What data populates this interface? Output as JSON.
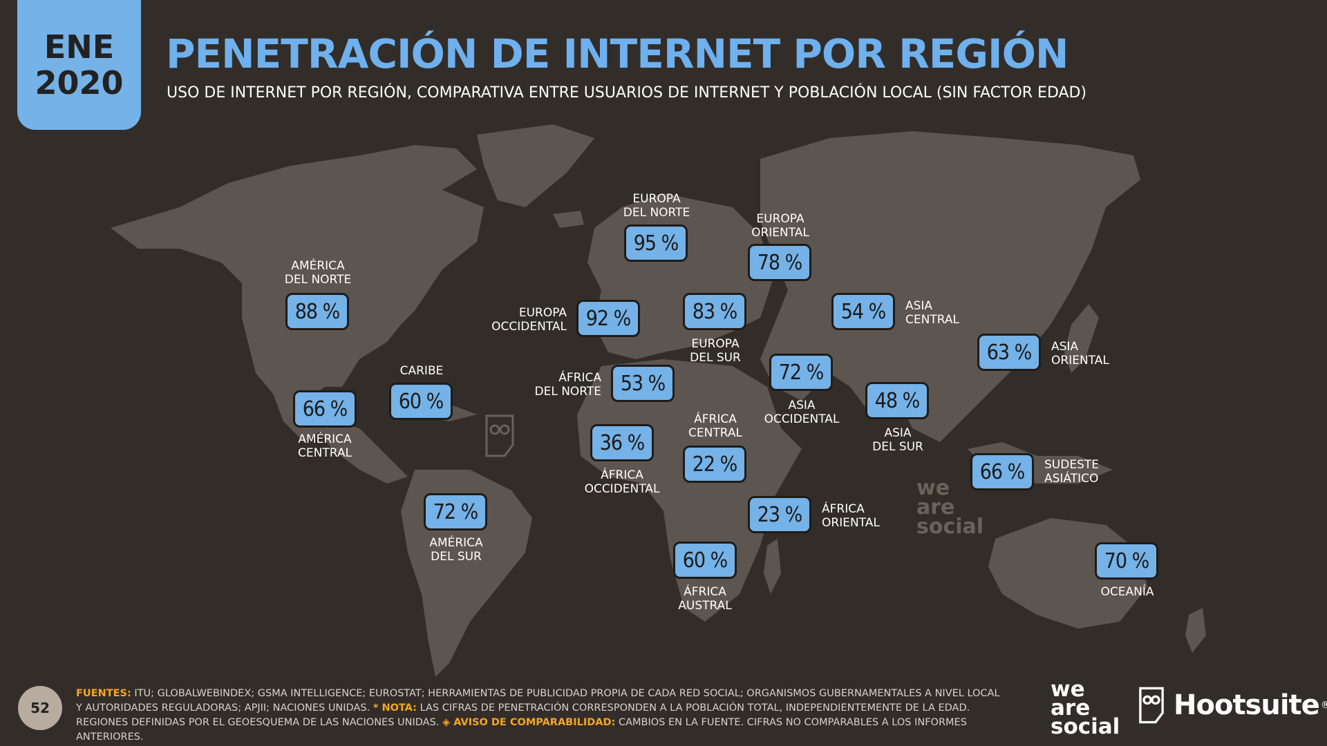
{
  "header": {
    "date_month": "ENE",
    "date_year": "2020",
    "title": "PENETRACIÓN DE INTERNET POR REGIÓN",
    "subtitle": "USO DE INTERNET POR REGIÓN, COMPARATIVA ENTRE USUARIOS DE INTERNET Y POBLACIÓN LOCAL (SIN FACTOR EDAD)"
  },
  "colors": {
    "background": "#332d29",
    "accent": "#74b2e8",
    "land": "#5d5550",
    "note": "#f5a623"
  },
  "chart_data": {
    "type": "table",
    "title": "PENETRACIÓN DE INTERNET POR REGIÓN",
    "unit": "%",
    "regions": [
      {
        "name": "AMÉRICA\nDEL NORTE",
        "value": 88
      },
      {
        "name": "AMÉRICA\nCENTRAL",
        "value": 66
      },
      {
        "name": "CARIBE",
        "value": 60
      },
      {
        "name": "AMÉRICA\nDEL SUR",
        "value": 72
      },
      {
        "name": "EUROPA\nDEL NORTE",
        "value": 95
      },
      {
        "name": "EUROPA\nOCCIDENTAL",
        "value": 92
      },
      {
        "name": "EUROPA\nDEL SUR",
        "value": 83
      },
      {
        "name": "EUROPA\nORIENTAL",
        "value": 78
      },
      {
        "name": "ÁFRICA\nDEL NORTE",
        "value": 53
      },
      {
        "name": "ÁFRICA\nOCCIDENTAL",
        "value": 36
      },
      {
        "name": "ÁFRICA\nCENTRAL",
        "value": 22
      },
      {
        "name": "ÁFRICA\nORIENTAL",
        "value": 23
      },
      {
        "name": "ÁFRICA\nAUSTRAL",
        "value": 60
      },
      {
        "name": "ASIA\nOCCIDENTAL",
        "value": 72
      },
      {
        "name": "ASIA\nCENTRAL",
        "value": 54
      },
      {
        "name": "ASIA\nDEL SUR",
        "value": 48
      },
      {
        "name": "ASIA\nORIENTAL",
        "value": 63
      },
      {
        "name": "SUDESTE\nASIÁTICO",
        "value": 66
      },
      {
        "name": "OCEANÍA",
        "value": 70
      }
    ]
  },
  "watermark": {
    "text": "we\nare\nsocial",
    "owl_icon": "hootsuite-owl-icon"
  },
  "footer": {
    "page_number": "52",
    "sources_key": "FUENTES:",
    "sources_text": "ITU; GLOBALWEBINDEX; GSMA INTELLIGENCE; EUROSTAT; HERRAMIENTAS DE PUBLICIDAD PROPIA DE CADA RED SOCIAL; ORGANISMOS GUBERNAMENTALES A NIVEL LOCAL Y AUTORIDADES REGULADORAS; APJII; NACIONES UNIDAS.",
    "note_key": "* NOTA:",
    "note_text": "LAS CIFRAS DE PENETRACIÓN CORRESPONDEN A LA POBLACIÓN TOTAL, INDEPENDIENTEMENTE DE LA EDAD. REGIONES DEFINIDAS POR EL GEOESQUEMA DE LAS NACIONES UNIDAS.",
    "warning_key": "◈ AVISO DE COMPARABILIDAD:",
    "warning_text": "CAMBIOS EN LA FUENTE. CIFRAS NO COMPARABLES A LOS INFORMES ANTERIORES.",
    "brand_1": "we\nare\nsocial",
    "brand_2": "Hootsuite",
    "brand_2_mark": "®"
  }
}
